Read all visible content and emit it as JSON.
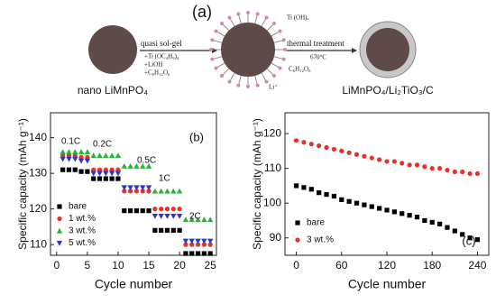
{
  "diagram": {
    "panel_label": "(a)",
    "step1": "quasi sol-gel",
    "reagents": [
      "+Ti (OC₄H₉)₄",
      "+LiOH",
      "+C₆H₁₂O₆"
    ],
    "surface_labels": [
      "Ti (OH)ₓ",
      "C₆H₁₂O₆",
      "Li⁺"
    ],
    "step2": "thermal treatment",
    "temperature": "670°C",
    "start": "nano LiMnPO₄",
    "product": "LiMnPO₄/Li₂TiO₃/C"
  },
  "chart_data": [
    {
      "type": "scatter",
      "panel_label": "(b)",
      "xlabel": "Cycle number",
      "ylabel": "Specific capacity (mAh g⁻¹)",
      "x": [
        1,
        2,
        3,
        4,
        5,
        6,
        7,
        8,
        9,
        10,
        11,
        12,
        13,
        14,
        15,
        16,
        17,
        18,
        19,
        20,
        21,
        22,
        23,
        24,
        25
      ],
      "series": [
        {
          "name": "bare",
          "color": "#000000",
          "marker": "square",
          "values": [
            131,
            131,
            131,
            130.5,
            130.5,
            128.5,
            128.5,
            128.5,
            128.5,
            128.5,
            119.5,
            119.5,
            119.5,
            119.5,
            119.5,
            114,
            114,
            114,
            114,
            114,
            107.5,
            107.5,
            107.5,
            107.5,
            107.5
          ]
        },
        {
          "name": "1 wt.%",
          "color": "#e8302a",
          "marker": "circle",
          "values": [
            135,
            135,
            135,
            134.5,
            134.5,
            131,
            131,
            131,
            131,
            131,
            125,
            125,
            125,
            125,
            125,
            120,
            120,
            120,
            120,
            120,
            110,
            110,
            110,
            110,
            110
          ]
        },
        {
          "name": "3 wt.%",
          "color": "#27b33a",
          "marker": "triangle-up",
          "values": [
            136,
            136,
            136,
            136,
            136,
            135,
            135,
            135,
            135,
            135,
            132,
            132,
            132,
            132,
            132,
            125,
            125,
            125,
            125,
            125,
            117,
            117,
            117,
            117,
            117
          ]
        },
        {
          "name": "5 wt.%",
          "color": "#2a35d8",
          "marker": "triangle-down",
          "values": [
            134,
            134,
            134,
            133.5,
            133.5,
            130,
            130,
            130,
            130,
            130,
            126,
            126,
            126,
            126,
            126,
            118,
            118,
            118,
            118,
            118,
            111,
            111,
            111,
            111,
            111
          ]
        }
      ],
      "annotations": [
        "0.1C",
        "0.2C",
        "0.5C",
        "1C",
        "2C"
      ],
      "xlim": [
        -1,
        26
      ],
      "ylim": [
        107,
        147
      ],
      "xticks": [
        0,
        5,
        10,
        15,
        20,
        25
      ],
      "yticks": [
        110,
        120,
        130,
        140
      ]
    },
    {
      "type": "scatter",
      "panel_label": "(c)",
      "xlabel": "Cycle number",
      "ylabel": "Specific capacity (mAh g⁻¹)",
      "x": [
        0,
        10,
        20,
        30,
        40,
        50,
        60,
        70,
        80,
        90,
        100,
        110,
        120,
        130,
        140,
        150,
        160,
        170,
        180,
        190,
        200,
        210,
        220,
        230,
        240
      ],
      "series": [
        {
          "name": "bare",
          "color": "#000000",
          "marker": "square",
          "values": [
            105,
            104.5,
            104,
            103,
            102.5,
            102,
            101,
            100.5,
            100,
            99.5,
            99,
            98.5,
            98,
            97.5,
            97,
            96.5,
            96,
            95,
            94.5,
            94,
            93,
            92,
            91,
            90,
            89.5
          ]
        },
        {
          "name": "3 wt.%",
          "color": "#e8302a",
          "marker": "circle",
          "values": [
            118,
            117.5,
            117,
            116.5,
            116,
            115.5,
            115,
            114.5,
            114,
            113.5,
            113,
            112.5,
            112,
            112,
            111.5,
            111,
            111,
            110.5,
            110,
            110,
            109.5,
            109,
            109,
            108.5,
            108.5
          ]
        }
      ],
      "xlim": [
        -15,
        255
      ],
      "ylim": [
        85,
        126
      ],
      "xticks": [
        0,
        60,
        120,
        180,
        240
      ],
      "yticks": [
        90,
        100,
        110,
        120
      ]
    }
  ]
}
